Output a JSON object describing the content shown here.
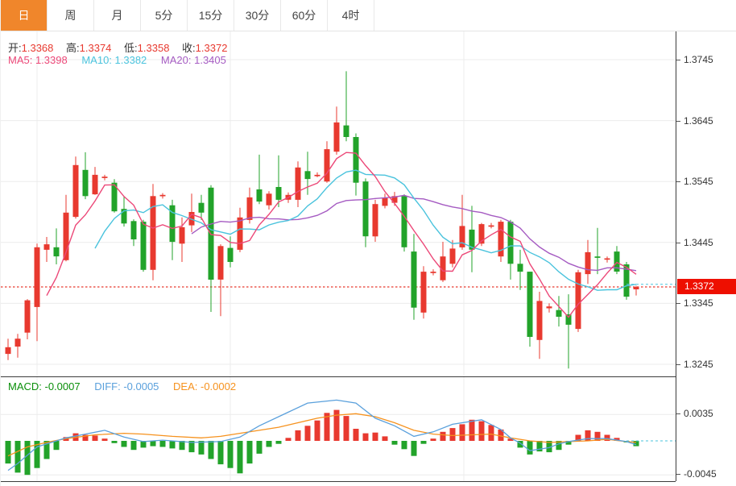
{
  "tabs": [
    {
      "label": "日",
      "active": true
    },
    {
      "label": "周",
      "active": false
    },
    {
      "label": "月",
      "active": false
    },
    {
      "label": "5分",
      "active": false
    },
    {
      "label": "15分",
      "active": false
    },
    {
      "label": "30分",
      "active": false
    },
    {
      "label": "60分",
      "active": false
    },
    {
      "label": "4时",
      "active": false
    }
  ],
  "price_legend": {
    "open_label": "开:",
    "open": "1.3368",
    "high_label": "高:",
    "high": "1.3374",
    "low_label": "低:",
    "low": "1.3358",
    "close_label": "收:",
    "close": "1.3372",
    "ma5": "MA5: 1.3398",
    "ma10": "MA10: 1.3382",
    "ma20": "MA20: 1.3405"
  },
  "macd_legend": {
    "macd": "MACD: -0.0007",
    "diff": "DIFF: -0.0005",
    "dea": "DEA: -0.0002"
  },
  "price_axis": {
    "ticks": [
      "1.3745",
      "1.3645",
      "1.3545",
      "1.3445",
      "1.3345",
      "1.3245"
    ],
    "last_price": "1.3372"
  },
  "macd_axis": {
    "ticks": [
      "0.0035",
      "-0.0045"
    ]
  },
  "colors": {
    "up": "#e8392f",
    "down": "#22a32a",
    "badge": "#ee0f00",
    "ma5": "#ec4878",
    "ma10": "#4ac3dd",
    "ma20": "#a55bc2",
    "diff": "#5aa0dc",
    "dea": "#f6921e",
    "macd_text": "#0a8f0a",
    "grid": "#ececec",
    "tab_active_bg": "#f0862b",
    "axis_text": "#333333"
  },
  "chart_data": {
    "type": "candlestick",
    "title": "",
    "price_ticks": [
      1.3745,
      1.3645,
      1.3545,
      1.3445,
      1.3345,
      1.3245
    ],
    "last_price": 1.3372,
    "candles": [
      [
        1.3262,
        1.3287,
        1.3252,
        1.3273
      ],
      [
        1.3274,
        1.3295,
        1.3256,
        1.3287
      ],
      [
        1.3297,
        1.3352,
        1.3286,
        1.335
      ],
      [
        1.3339,
        1.3443,
        1.3283,
        1.3437
      ],
      [
        1.3433,
        1.3454,
        1.3413,
        1.3442
      ],
      [
        1.3437,
        1.3468,
        1.3409,
        1.3422
      ],
      [
        1.3416,
        1.3523,
        1.3414,
        1.3494
      ],
      [
        1.3487,
        1.3586,
        1.3484,
        1.3572
      ],
      [
        1.3564,
        1.3593,
        1.3516,
        1.3521
      ],
      [
        1.3524,
        1.3569,
        1.3523,
        1.3556
      ],
      [
        1.3551,
        1.3556,
        1.3547,
        1.3553
      ],
      [
        1.3543,
        1.3549,
        1.3494,
        1.3496
      ],
      [
        1.35,
        1.352,
        1.3471,
        1.3476
      ],
      [
        1.348,
        1.3483,
        1.3439,
        1.345
      ],
      [
        1.3479,
        1.3482,
        1.3397,
        1.34
      ],
      [
        1.34,
        1.3541,
        1.3383,
        1.3521
      ],
      [
        1.3521,
        1.3526,
        1.3517,
        1.3523
      ],
      [
        1.3506,
        1.3515,
        1.3416,
        1.3446
      ],
      [
        1.3443,
        1.3486,
        1.3413,
        1.347
      ],
      [
        1.3473,
        1.3525,
        1.3462,
        1.3495
      ],
      [
        1.351,
        1.3523,
        1.3482,
        1.3494
      ],
      [
        1.3535,
        1.3539,
        1.3331,
        1.3384
      ],
      [
        1.3384,
        1.3442,
        1.3324,
        1.3439
      ],
      [
        1.3436,
        1.3455,
        1.3404,
        1.3413
      ],
      [
        1.3433,
        1.3502,
        1.3429,
        1.3486
      ],
      [
        1.3482,
        1.3535,
        1.3476,
        1.3519
      ],
      [
        1.3532,
        1.3589,
        1.3508,
        1.3512
      ],
      [
        1.3506,
        1.3529,
        1.3499,
        1.3525
      ],
      [
        1.3536,
        1.3588,
        1.3503,
        1.3515
      ],
      [
        1.3515,
        1.3527,
        1.351,
        1.3523
      ],
      [
        1.3515,
        1.3578,
        1.3503,
        1.3568
      ],
      [
        1.3562,
        1.3594,
        1.3523,
        1.3549
      ],
      [
        1.3554,
        1.356,
        1.3552,
        1.3556
      ],
      [
        1.3545,
        1.3611,
        1.3543,
        1.3598
      ],
      [
        1.3594,
        1.3668,
        1.3589,
        1.3642
      ],
      [
        1.3637,
        1.3726,
        1.3611,
        1.3618
      ],
      [
        1.3618,
        1.3624,
        1.3522,
        1.3543
      ],
      [
        1.3545,
        1.355,
        1.3437,
        1.3455
      ],
      [
        1.3455,
        1.3515,
        1.3446,
        1.3508
      ],
      [
        1.3505,
        1.3525,
        1.3501,
        1.3518
      ],
      [
        1.351,
        1.3528,
        1.3505,
        1.3521
      ],
      [
        1.3521,
        1.3524,
        1.343,
        1.3437
      ],
      [
        1.343,
        1.3459,
        1.3318,
        1.3338
      ],
      [
        1.333,
        1.3406,
        1.332,
        1.3397
      ],
      [
        1.3395,
        1.3401,
        1.3391,
        1.3397
      ],
      [
        1.3383,
        1.3446,
        1.338,
        1.3422
      ],
      [
        1.341,
        1.3449,
        1.3404,
        1.3435
      ],
      [
        1.3437,
        1.3523,
        1.3433,
        1.3472
      ],
      [
        1.3466,
        1.3505,
        1.3396,
        1.3433
      ],
      [
        1.3443,
        1.3477,
        1.3439,
        1.3475
      ],
      [
        1.3471,
        1.3477,
        1.3468,
        1.3473
      ],
      [
        1.3422,
        1.3482,
        1.3413,
        1.3479
      ],
      [
        1.3479,
        1.3482,
        1.3384,
        1.341
      ],
      [
        1.341,
        1.3433,
        1.3367,
        1.3397
      ],
      [
        1.3397,
        1.3397,
        1.3274,
        1.329
      ],
      [
        1.3285,
        1.3364,
        1.3254,
        1.3349
      ],
      [
        1.3337,
        1.3345,
        1.333,
        1.334
      ],
      [
        1.3334,
        1.3357,
        1.3307,
        1.3323
      ],
      [
        1.3327,
        1.336,
        1.3238,
        1.331
      ],
      [
        1.3303,
        1.34,
        1.3298,
        1.3396
      ],
      [
        1.3393,
        1.3449,
        1.3377,
        1.3429
      ],
      [
        1.3422,
        1.3469,
        1.3393,
        1.342
      ],
      [
        1.3417,
        1.3422,
        1.3412,
        1.3419
      ],
      [
        1.343,
        1.3439,
        1.3393,
        1.3397
      ],
      [
        1.3409,
        1.3413,
        1.3351,
        1.3356
      ],
      [
        1.3368,
        1.3374,
        1.3358,
        1.3372
      ]
    ],
    "ma_windows": {
      "ma5": 5,
      "ma10": 10,
      "ma20": 20
    },
    "ma_display": {
      "ma5": 1.3398,
      "ma10": 1.3382,
      "ma20": 1.3405
    },
    "macd": {
      "ticks": [
        0.0035,
        -0.0045
      ],
      "last": {
        "macd": -0.0007,
        "diff": -0.0005,
        "dea": -0.0002
      },
      "histogram": [
        -0.003,
        -0.0042,
        -0.0045,
        -0.0036,
        -0.0024,
        -0.0012,
        0.0005,
        0.001,
        0.0008,
        0.0007,
        0.0003,
        -0.0003,
        -0.0008,
        -0.0012,
        -0.0009,
        -0.0007,
        -0.0008,
        -0.001,
        -0.0012,
        -0.0015,
        -0.0018,
        -0.0024,
        -0.0031,
        -0.0036,
        -0.0043,
        -0.003,
        -0.0017,
        -0.0008,
        -0.0004,
        0.0004,
        0.0014,
        0.002,
        0.0027,
        0.0037,
        0.0041,
        0.0033,
        0.0016,
        0.001,
        0.0011,
        0.0006,
        -0.0005,
        -0.0011,
        -0.002,
        -0.0004,
        0.0003,
        0.0012,
        0.0017,
        0.0022,
        0.0028,
        0.0026,
        0.0021,
        0.0015,
        0.0003,
        -0.0009,
        -0.0018,
        -0.0014,
        -0.0015,
        -0.0012,
        -0.0005,
        0.0008,
        0.0014,
        0.0012,
        0.0008,
        0.0004,
        -0.0002,
        -0.0007
      ],
      "diff_points": [
        [
          0,
          -0.0039
        ],
        [
          1,
          -0.003
        ],
        [
          3,
          -0.0008
        ],
        [
          6,
          0.0004
        ],
        [
          8,
          0.0009
        ],
        [
          10,
          0.0014
        ],
        [
          12,
          0.0005
        ],
        [
          14,
          -0.0001
        ],
        [
          16,
          0.0001
        ],
        [
          19,
          -0.0002
        ],
        [
          22,
          -0.0001
        ],
        [
          24,
          0.0005
        ],
        [
          26,
          0.002
        ],
        [
          29,
          0.0038
        ],
        [
          31,
          0.005
        ],
        [
          34,
          0.0054
        ],
        [
          36,
          0.005
        ],
        [
          38,
          0.003
        ],
        [
          40,
          0.002
        ],
        [
          42,
          0.0006
        ],
        [
          44,
          0.0012
        ],
        [
          46,
          0.0022
        ],
        [
          49,
          0.0028
        ],
        [
          51,
          0.0015
        ],
        [
          52,
          0.0004
        ],
        [
          53,
          -0.0003
        ],
        [
          54,
          -0.0013
        ],
        [
          56,
          -0.0009
        ],
        [
          57,
          -0.0004
        ],
        [
          58,
          -0.0001
        ],
        [
          60,
          0.0003
        ],
        [
          62,
          0.0003
        ],
        [
          64,
          -0.0001
        ],
        [
          65,
          -0.0005
        ]
      ],
      "dea_points": [
        [
          0,
          -0.002
        ],
        [
          2,
          -0.0008
        ],
        [
          4,
          -0.0002
        ],
        [
          6,
          0.0003
        ],
        [
          9,
          0.0008
        ],
        [
          12,
          0.001
        ],
        [
          14,
          0.0009
        ],
        [
          17,
          0.0006
        ],
        [
          20,
          0.0004
        ],
        [
          22,
          0.0006
        ],
        [
          24,
          0.001
        ],
        [
          26,
          0.0014
        ],
        [
          28,
          0.0018
        ],
        [
          30,
          0.0024
        ],
        [
          32,
          0.003
        ],
        [
          34,
          0.0034
        ],
        [
          36,
          0.0036
        ],
        [
          38,
          0.0032
        ],
        [
          40,
          0.0024
        ],
        [
          42,
          0.0014
        ],
        [
          44,
          0.0009
        ],
        [
          46,
          0.0007
        ],
        [
          48,
          0.0008
        ],
        [
          50,
          0.0009
        ],
        [
          52,
          0.0004
        ],
        [
          54,
          0.0
        ],
        [
          56,
          -0.0002
        ],
        [
          58,
          -0.0001
        ],
        [
          60,
          0.0
        ],
        [
          62,
          0.0002
        ],
        [
          64,
          -0.0001
        ],
        [
          65,
          -0.0002
        ]
      ]
    }
  }
}
